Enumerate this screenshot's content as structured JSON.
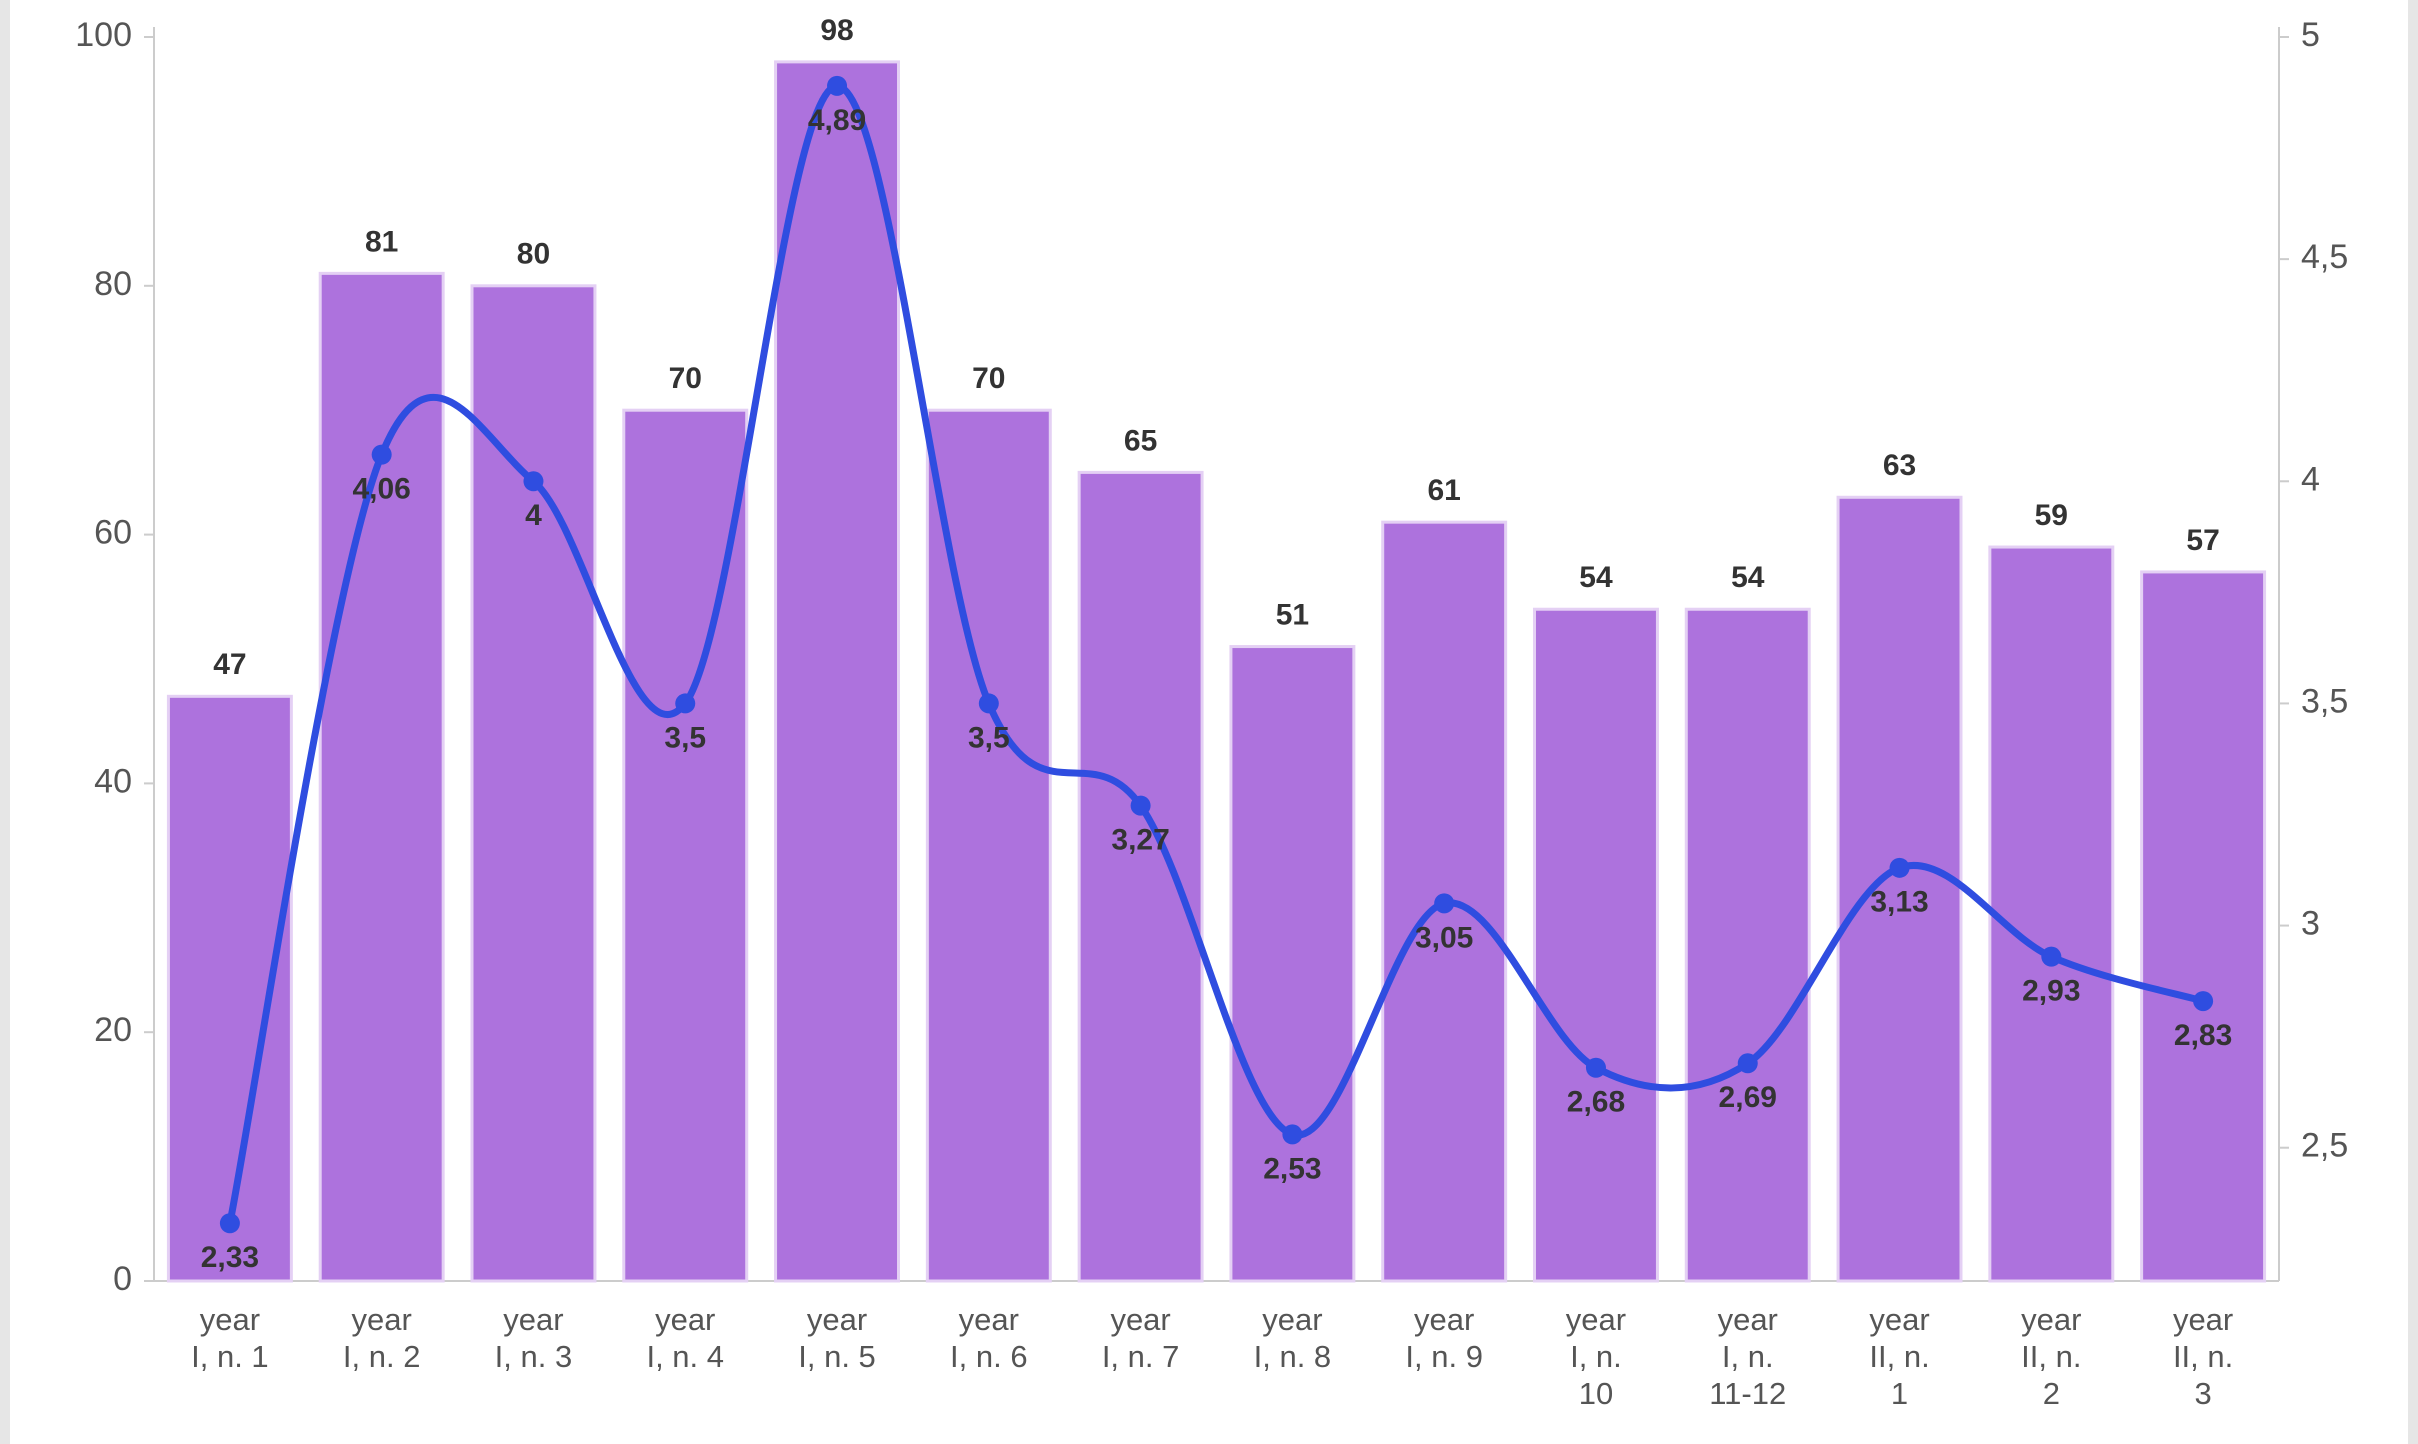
{
  "chart_data": {
    "type": "bar_line",
    "categories": [
      "year I, n. 1",
      "year I, n. 2",
      "year I, n. 3",
      "year I, n. 4",
      "year I, n. 5",
      "year I, n. 6",
      "year I, n. 7",
      "year I, n. 8",
      "year I, n. 9",
      "year I, n. 10",
      "year I, n. 11-12",
      "year II, n. 1",
      "year II, n. 2",
      "year II, n. 3"
    ],
    "series": [
      {
        "type": "bar",
        "color": "#ad72dd",
        "values": [
          47,
          81,
          80,
          70,
          98,
          70,
          65,
          51,
          61,
          54,
          54,
          63,
          59,
          57
        ]
      },
      {
        "type": "line",
        "axis": "y2",
        "color": "#2f4de0",
        "values": [
          2.33,
          4.06,
          4,
          3.5,
          4.89,
          3.5,
          3.27,
          2.53,
          3.05,
          2.68,
          2.69,
          3.13,
          2.93,
          2.83
        ],
        "value_labels": [
          "2,33",
          "4,06",
          "4",
          "3,5",
          "4,89",
          "3,5",
          "3,27",
          "2,53",
          "3,05",
          "2,68",
          "2,69",
          "3,13",
          "2,93",
          "2,83"
        ]
      }
    ],
    "ylim": [
      0,
      100
    ],
    "yticks": [
      0,
      20,
      40,
      60,
      80,
      100
    ],
    "y2lim": [
      2.2,
      5
    ],
    "y2ticks": [
      {
        "value": 2.5,
        "label": "2,5"
      },
      3,
      {
        "value": 3.5,
        "label": "3,5"
      },
      4,
      {
        "value": 4.5,
        "label": "4,5"
      },
      5
    ],
    "grid": false
  }
}
